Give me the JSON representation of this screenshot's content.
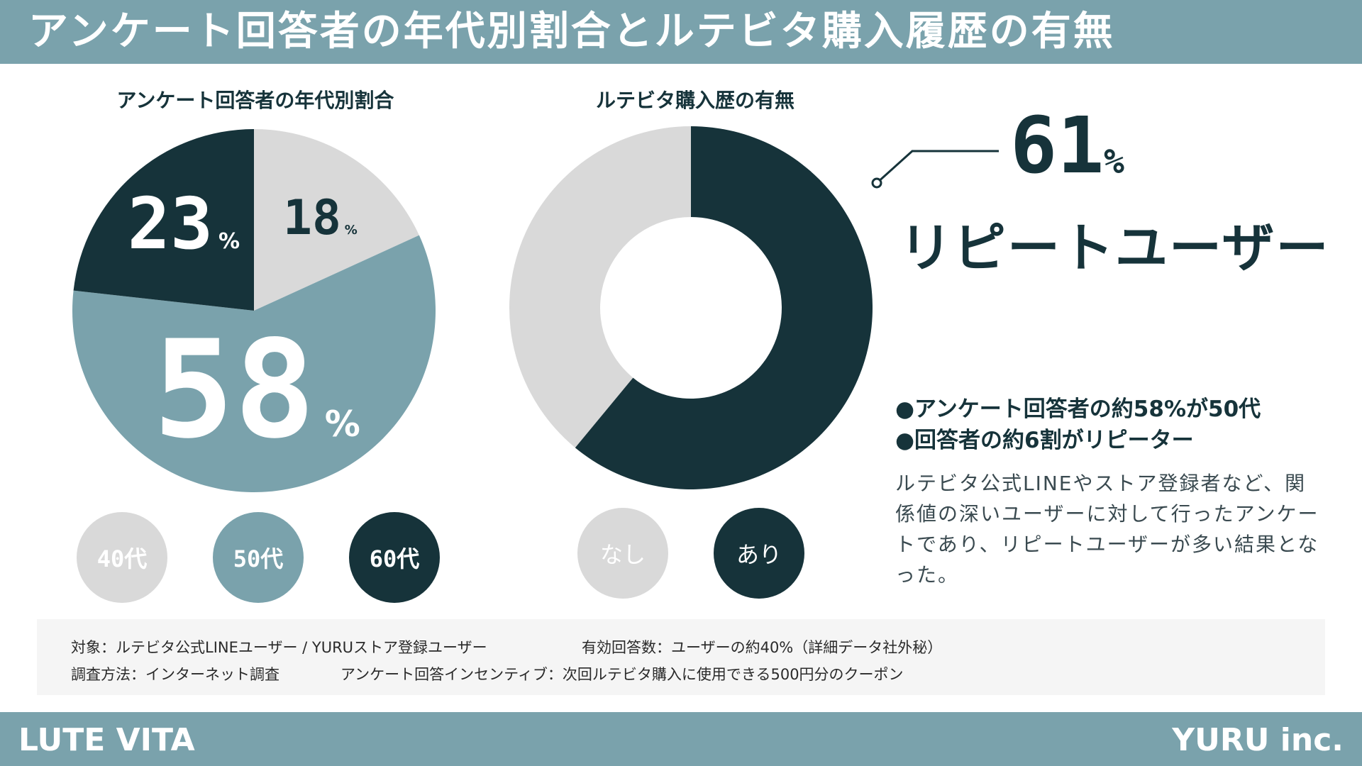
{
  "header": {
    "title": "アンケート回答者の年代別割合とルテビタ購入履歴の有無"
  },
  "colors": {
    "dark": "#16333a",
    "mid": "#7aa2ac",
    "light": "#d9d9d9",
    "white": "#ffffff"
  },
  "chart_data": [
    {
      "type": "pie",
      "title": "アンケート回答者の年代別割合",
      "categories": [
        "40代",
        "50代",
        "60代"
      ],
      "values": [
        18,
        58,
        23
      ],
      "value_labels": [
        "18",
        "58",
        "23"
      ],
      "unit": "%",
      "colors": [
        "#d9d9d9",
        "#7aa2ac",
        "#16333a"
      ],
      "legend": "bottom"
    },
    {
      "type": "pie",
      "subtype": "donut",
      "title": "ルテビタ購入歴の有無",
      "categories": [
        "なし",
        "あり"
      ],
      "values": [
        39,
        61
      ],
      "colors": [
        "#d9d9d9",
        "#16333a"
      ],
      "legend": "bottom"
    }
  ],
  "callout": {
    "value": "61",
    "unit": "%",
    "label": "リピートユーザー"
  },
  "bullets": [
    "●アンケート回答者の約58%が50代",
    "●回答者の約6割がリピーター"
  ],
  "description": "ルテビタ公式LINEやストア登録者など、関係値の深いユーザーに対して行ったアンケートであり、リピートユーザーが多い結果となった。",
  "info": {
    "target": "対象：ルテビタ公式LINEユーザー / YURUストア登録ユーザー",
    "responses": "有効回答数：ユーザーの約40%（詳細データ社外秘）",
    "method": "調査方法：インターネット調査",
    "incentive": "アンケート回答インセンティブ：次回ルテビタ購入に使用できる500円分のクーポン"
  },
  "footer": {
    "brand": "LUTE VITA",
    "company": "YURU inc."
  }
}
